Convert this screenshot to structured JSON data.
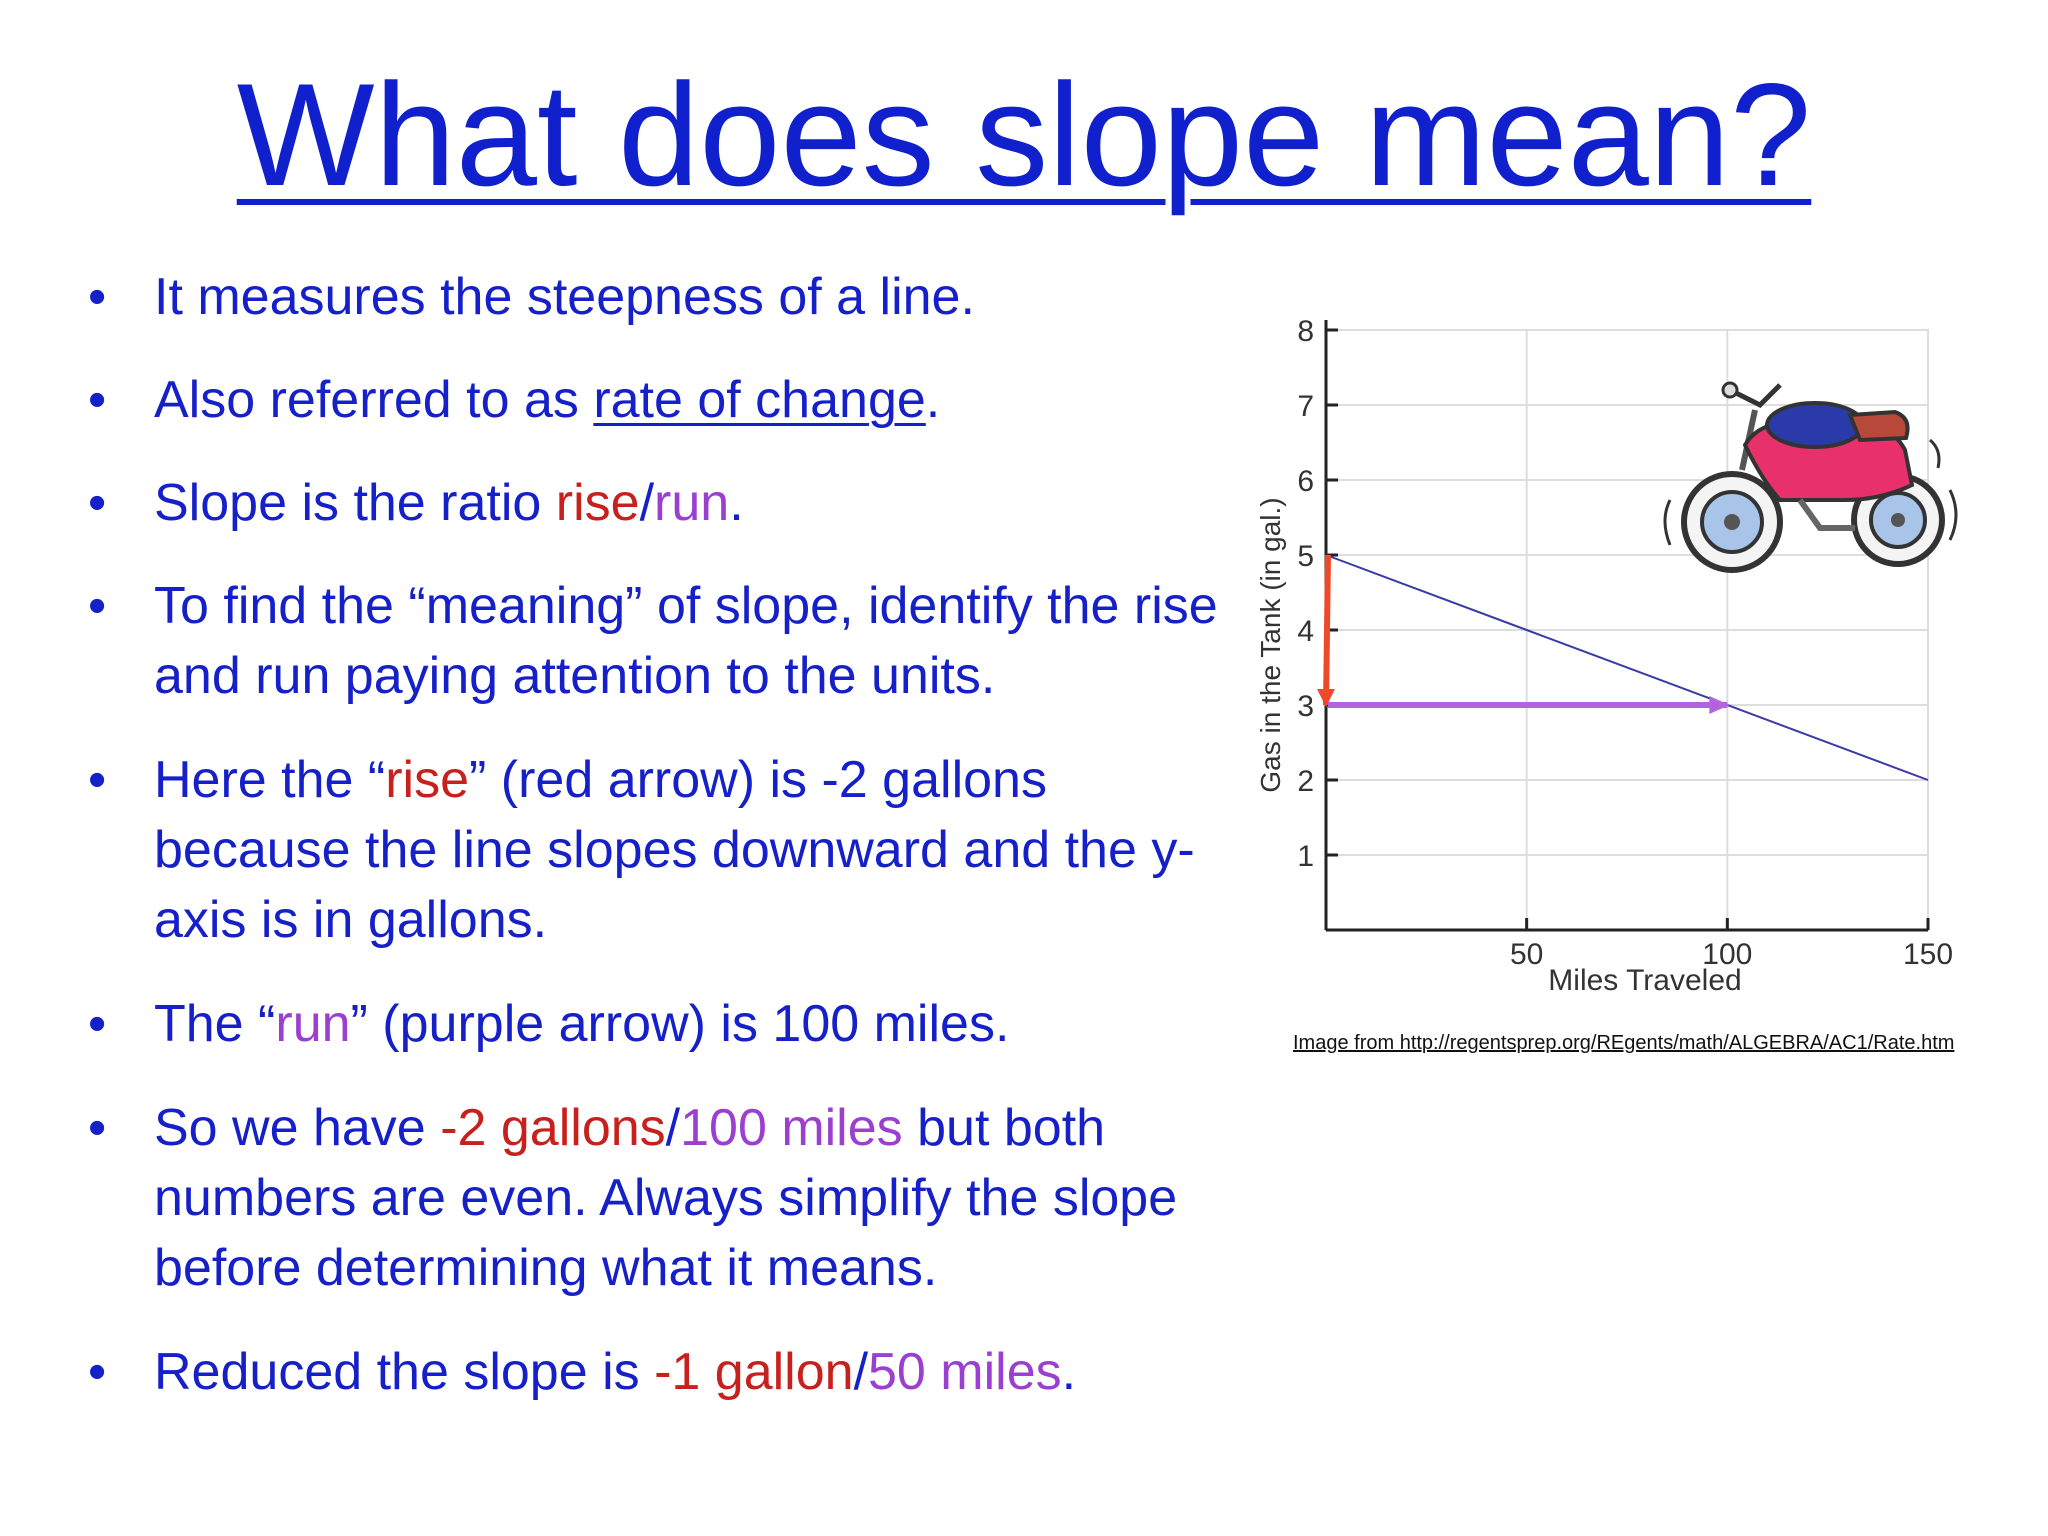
{
  "title": "What does slope mean?",
  "bullets": [
    [
      {
        "t": "It measures the steepness of a line."
      }
    ],
    [
      {
        "t": "Also referred to as "
      },
      {
        "t": "rate of change",
        "u": true
      },
      {
        "t": "."
      }
    ],
    [
      {
        "t": "Slope is the ratio "
      },
      {
        "t": "rise",
        "c": "red"
      },
      {
        "t": "/"
      },
      {
        "t": "run",
        "c": "purple"
      },
      {
        "t": "."
      }
    ],
    [
      {
        "t": "To find the “meaning” of slope, identify the rise and run paying attention to the units."
      }
    ],
    [
      {
        "t": "Here the “"
      },
      {
        "t": "rise",
        "c": "red"
      },
      {
        "t": "” (red arrow) is -2 gallons because the line slopes downward and the y-axis is in gallons."
      }
    ],
    [
      {
        "t": "The “"
      },
      {
        "t": "run",
        "c": "purple"
      },
      {
        "t": "” (purple arrow) is 100 miles."
      }
    ],
    [
      {
        "t": "So we have "
      },
      {
        "t": "-2 gallons",
        "c": "red"
      },
      {
        "t": "/"
      },
      {
        "t": "100 miles",
        "c": "purple"
      },
      {
        "t": " but both numbers are even.  Always simplify the slope before determining what it means."
      }
    ],
    [
      {
        "t": "Reduced the slope is "
      },
      {
        "t": "-1 gallon",
        "c": "red"
      },
      {
        "t": "/"
      },
      {
        "t": "50 miles",
        "c": "purple"
      },
      {
        "t": "."
      }
    ]
  ],
  "caption": "Image from http://regentsprep.org/REgents/math/ALGEBRA/AC1/Rate.htm",
  "colors": {
    "text": "#1520c8",
    "rise": "#c8201c",
    "run": "#9a3fd0",
    "line": "#3a3aa8"
  },
  "chart_data": {
    "type": "line",
    "xlabel": "Miles Traveled",
    "ylabel": "Gas in the Tank  (in gal.)",
    "xlim": [
      0,
      150
    ],
    "ylim": [
      0,
      8
    ],
    "xticks": [
      50,
      100,
      150
    ],
    "yticks": [
      1,
      2,
      3,
      4,
      5,
      6,
      7,
      8
    ],
    "grid": true,
    "series": [
      {
        "x": [
          0,
          150
        ],
        "y": [
          5,
          2
        ]
      }
    ],
    "annotations": [
      {
        "kind": "rise-arrow",
        "from": [
          0,
          5
        ],
        "to": [
          0,
          3
        ],
        "color": "red"
      },
      {
        "kind": "run-arrow",
        "from": [
          0,
          3
        ],
        "to": [
          100,
          3
        ],
        "color": "purple"
      }
    ],
    "illustration": "motorcycle"
  }
}
